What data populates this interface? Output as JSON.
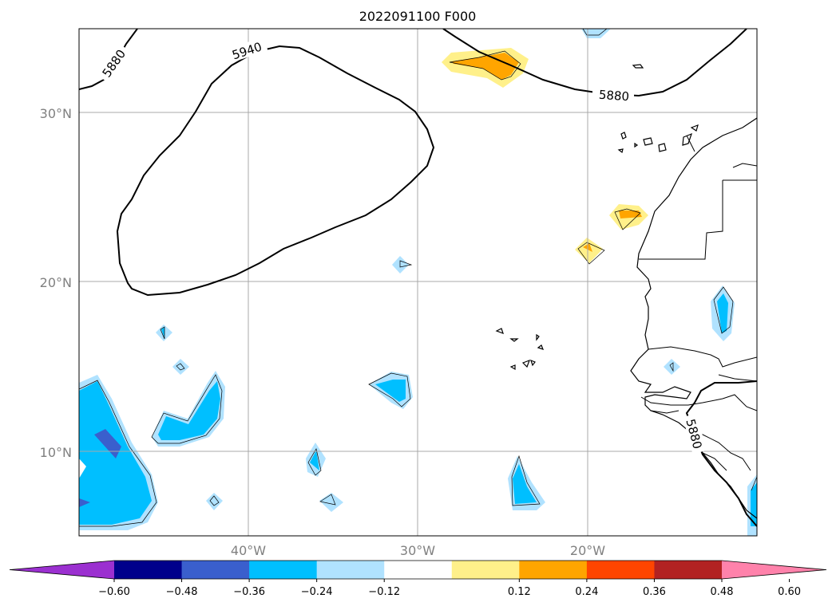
{
  "title": "2022091100 F000",
  "map": {
    "lat_labels": [
      "30°N",
      "20°N",
      "10°N"
    ],
    "lon_labels": [
      "40°W",
      "30°W",
      "20°W"
    ],
    "contour_labels": [
      "5940",
      "5880",
      "5880",
      "5880"
    ],
    "contour_levels": [
      5880,
      5940
    ],
    "grid": true
  },
  "colorbar": {
    "tick_labels": [
      "−0.60",
      "−0.48",
      "−0.36",
      "−0.24",
      "−0.12",
      "0.12",
      "0.24",
      "0.36",
      "0.48",
      "0.60"
    ],
    "colors": [
      "#9b30d0",
      "#00008b",
      "#3a5fcd",
      "#00bfff",
      "#b0e2ff",
      "#ffffff",
      "#fff08a",
      "#ffa500",
      "#ff4500",
      "#b22222",
      "#ff82ab"
    ],
    "extend": "both"
  },
  "colors": {
    "positive_light": "#fff08a",
    "positive_strong": "#ffa500",
    "negative_light": "#b0e2ff",
    "negative_mid": "#00bfff",
    "negative_strong": "#3a5fcd"
  }
}
